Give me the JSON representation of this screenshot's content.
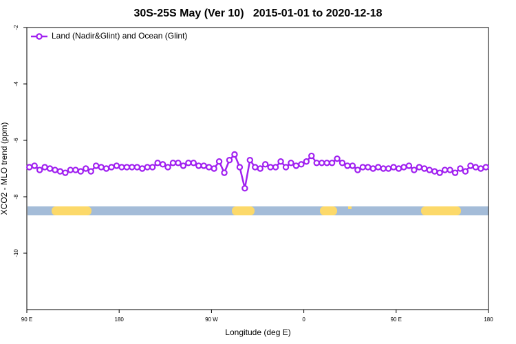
{
  "chart_data": {
    "type": "line",
    "title": "30S-25S May (Ver 10)   2015-01-01 to 2020-12-18",
    "x_label": "Longitude (deg E)",
    "y_label": "XCO2 - MLO trend (ppm)",
    "xlim": [
      90,
      540
    ],
    "ylim": [
      -12,
      -2
    ],
    "xticks": [
      {
        "value": 90,
        "label": "90 E"
      },
      {
        "value": 180,
        "label": "180"
      },
      {
        "value": 270,
        "label": "90 W"
      },
      {
        "value": 360,
        "label": "0"
      },
      {
        "value": 450,
        "label": "90 E"
      },
      {
        "value": 540,
        "label": "180"
      }
    ],
    "yticks": [
      -2,
      -4,
      -6,
      -8,
      -10
    ],
    "legend_position": "upper left",
    "x": [
      92.5,
      97.5,
      102.5,
      107.5,
      112.5,
      117.5,
      122.5,
      127.5,
      132.5,
      137.5,
      142.5,
      147.5,
      152.5,
      157.5,
      162.5,
      167.5,
      172.5,
      177.5,
      182.5,
      187.5,
      192.5,
      197.5,
      202.5,
      207.5,
      212.5,
      217.5,
      222.5,
      227.5,
      232.5,
      237.5,
      242.5,
      247.5,
      252.5,
      257.5,
      262.5,
      267.5,
      272.5,
      277.5,
      282.5,
      287.5,
      292.5,
      297.5,
      302.5,
      307.5,
      312.5,
      317.5,
      322.5,
      327.5,
      332.5,
      337.5,
      342.5,
      347.5,
      352.5,
      357.5,
      362.5,
      367.5,
      372.5,
      377.5,
      382.5,
      387.5,
      392.5,
      397.5,
      402.5,
      407.5,
      412.5,
      417.5,
      422.5,
      427.5,
      432.5,
      437.5,
      442.5,
      447.5,
      452.5,
      457.5,
      462.5,
      467.5,
      472.5,
      477.5,
      482.5,
      487.5,
      492.5,
      497.5,
      502.5,
      507.5,
      512.5,
      517.5,
      522.5,
      527.5,
      532.5,
      537.5
    ],
    "series": [
      {
        "name": "Land (Nadir&Glint) and Ocean (Glint)",
        "color": "#a020f0",
        "values": [
          -6.95,
          -6.9,
          -7.05,
          -6.95,
          -7.0,
          -7.05,
          -7.1,
          -7.15,
          -7.05,
          -7.05,
          -7.1,
          -7.0,
          -7.1,
          -6.9,
          -6.95,
          -7.0,
          -6.95,
          -6.9,
          -6.95,
          -6.95,
          -6.95,
          -6.95,
          -7.0,
          -6.95,
          -6.95,
          -6.8,
          -6.85,
          -6.95,
          -6.8,
          -6.8,
          -6.9,
          -6.8,
          -6.8,
          -6.9,
          -6.9,
          -6.95,
          -7.0,
          -6.75,
          -7.15,
          -6.7,
          -6.5,
          -6.95,
          -7.7,
          -6.7,
          -6.95,
          -7.0,
          -6.85,
          -6.95,
          -6.95,
          -6.75,
          -6.95,
          -6.8,
          -6.9,
          -6.85,
          -6.75,
          -6.55,
          -6.8,
          -6.8,
          -6.8,
          -6.8,
          -6.65,
          -6.8,
          -6.9,
          -6.9,
          -7.05,
          -6.95,
          -6.95,
          -7.0,
          -6.95,
          -7.0,
          -7.0,
          -6.95,
          -7.0,
          -6.95,
          -6.9,
          -7.05,
          -6.95,
          -7.0,
          -7.05,
          -7.1,
          -7.15,
          -7.05,
          -7.05,
          -7.15,
          -7.0,
          -7.1,
          -6.9,
          -6.95,
          -7.0,
          -6.95
        ]
      }
    ]
  }
}
